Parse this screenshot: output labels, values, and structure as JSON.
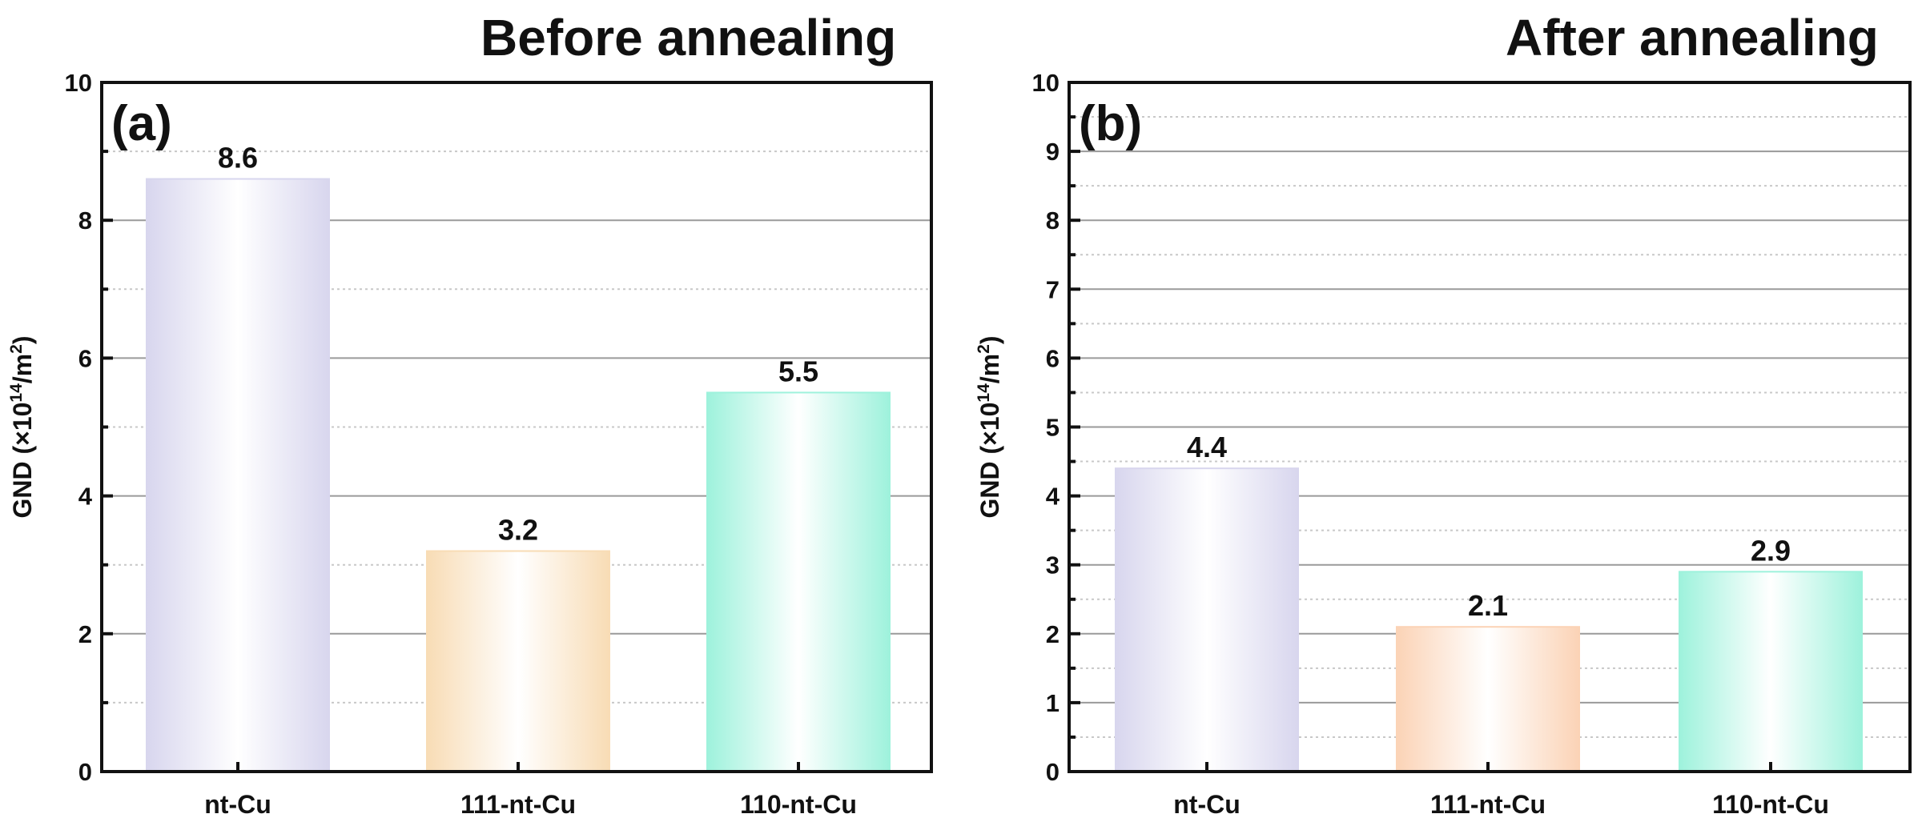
{
  "panels": [
    {
      "panel_label": "(a)",
      "title": "Before annealing"
    },
    {
      "panel_label": "(b)",
      "title": "After annealing"
    }
  ],
  "chart_data": [
    {
      "type": "bar",
      "panel_label": "(a)",
      "title": "Before annealing",
      "categories": [
        "nt-Cu",
        "111-nt-Cu",
        "110-nt-Cu"
      ],
      "values": [
        8.6,
        3.2,
        5.5
      ],
      "data_labels": [
        "8.6",
        "3.2",
        "5.5"
      ],
      "colors": [
        "#d8d6ee",
        "#f8dcb5",
        "#9ef2dc"
      ],
      "ylabel_prefix": "GND (×10",
      "ylabel_exp": "14",
      "ylabel_mid": "/m",
      "ylabel_sq": "2",
      "ylabel_suffix": ")",
      "ylim": [
        0,
        10
      ],
      "yticks": [
        "0",
        "2",
        "4",
        "6",
        "8",
        "10"
      ],
      "grid": true
    },
    {
      "type": "bar",
      "panel_label": "(b)",
      "title": "After annealing",
      "categories": [
        "nt-Cu",
        "111-nt-Cu",
        "110-nt-Cu"
      ],
      "values": [
        4.4,
        2.1,
        2.9
      ],
      "data_labels": [
        "4.4",
        "2.1",
        "2.9"
      ],
      "colors": [
        "#d8d6ee",
        "#fbd3b6",
        "#9ef2dc"
      ],
      "ylabel_prefix": "GND (×10",
      "ylabel_exp": "14",
      "ylabel_mid": "/m",
      "ylabel_sq": "2",
      "ylabel_suffix": ")",
      "ylim": [
        0,
        10
      ],
      "yticks": [
        "0",
        "1",
        "2",
        "3",
        "4",
        "5",
        "6",
        "7",
        "8",
        "9",
        "10"
      ],
      "grid": true
    }
  ]
}
